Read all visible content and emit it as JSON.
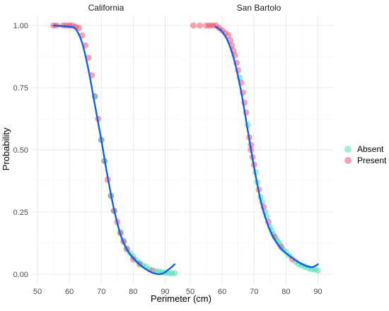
{
  "chart_data": {
    "type": "scatter",
    "facets": [
      {
        "title": "California",
        "points": [
          {
            "x": 55,
            "y": 1.0,
            "group": "Present"
          },
          {
            "x": 56,
            "y": 1.0,
            "group": "Present"
          },
          {
            "x": 58,
            "y": 1.0,
            "group": "Present"
          },
          {
            "x": 59,
            "y": 1.0,
            "group": "Present"
          },
          {
            "x": 60,
            "y": 1.0,
            "group": "Present"
          },
          {
            "x": 61,
            "y": 1.0,
            "group": "Present"
          },
          {
            "x": 62,
            "y": 0.995,
            "group": "Present"
          },
          {
            "x": 63,
            "y": 0.99,
            "group": "Present"
          },
          {
            "x": 64,
            "y": 0.96,
            "group": "Present"
          },
          {
            "x": 65,
            "y": 0.92,
            "group": "Present"
          },
          {
            "x": 66,
            "y": 0.87,
            "group": "Present"
          },
          {
            "x": 67,
            "y": 0.8,
            "group": "Present"
          },
          {
            "x": 68,
            "y": 0.715,
            "group": "Present"
          },
          {
            "x": 68,
            "y": 0.715,
            "group": "Absent"
          },
          {
            "x": 69,
            "y": 0.625,
            "group": "Present"
          },
          {
            "x": 70,
            "y": 0.54,
            "group": "Present"
          },
          {
            "x": 70,
            "y": 0.54,
            "group": "Absent"
          },
          {
            "x": 71,
            "y": 0.455,
            "group": "Present"
          },
          {
            "x": 71,
            "y": 0.455,
            "group": "Absent"
          },
          {
            "x": 72,
            "y": 0.38,
            "group": "Present"
          },
          {
            "x": 73,
            "y": 0.315,
            "group": "Present"
          },
          {
            "x": 73,
            "y": 0.315,
            "group": "Absent"
          },
          {
            "x": 74,
            "y": 0.255,
            "group": "Absent"
          },
          {
            "x": 74,
            "y": 0.255,
            "group": "Present"
          },
          {
            "x": 75,
            "y": 0.21,
            "group": "Present"
          },
          {
            "x": 76,
            "y": 0.17,
            "group": "Absent"
          },
          {
            "x": 76,
            "y": 0.165,
            "group": "Present"
          },
          {
            "x": 77,
            "y": 0.135,
            "group": "Absent"
          },
          {
            "x": 77,
            "y": 0.13,
            "group": "Present"
          },
          {
            "x": 78,
            "y": 0.105,
            "group": "Absent"
          },
          {
            "x": 78,
            "y": 0.1,
            "group": "Present"
          },
          {
            "x": 79,
            "y": 0.085,
            "group": "Absent"
          },
          {
            "x": 80,
            "y": 0.07,
            "group": "Absent"
          },
          {
            "x": 80,
            "y": 0.06,
            "group": "Present"
          },
          {
            "x": 81,
            "y": 0.055,
            "group": "Absent"
          },
          {
            "x": 82,
            "y": 0.045,
            "group": "Absent"
          },
          {
            "x": 82,
            "y": 0.04,
            "group": "Present"
          },
          {
            "x": 83,
            "y": 0.035,
            "group": "Absent"
          },
          {
            "x": 84,
            "y": 0.03,
            "group": "Absent"
          },
          {
            "x": 85,
            "y": 0.02,
            "group": "Absent"
          },
          {
            "x": 86,
            "y": 0.015,
            "group": "Present"
          },
          {
            "x": 87,
            "y": 0.012,
            "group": "Absent"
          },
          {
            "x": 88,
            "y": 0.01,
            "group": "Absent"
          },
          {
            "x": 89,
            "y": 0.008,
            "group": "Absent"
          },
          {
            "x": 90,
            "y": 0.006,
            "group": "Absent"
          },
          {
            "x": 91,
            "y": 0.005,
            "group": "Absent"
          },
          {
            "x": 92,
            "y": 0.004,
            "group": "Absent"
          },
          {
            "x": 93,
            "y": 0.004,
            "group": "Absent"
          }
        ],
        "fit": [
          {
            "x": 55,
            "y": 1.0
          },
          {
            "x": 60,
            "y": 0.995
          },
          {
            "x": 62,
            "y": 0.985
          },
          {
            "x": 64,
            "y": 0.93
          },
          {
            "x": 66,
            "y": 0.82
          },
          {
            "x": 68,
            "y": 0.68
          },
          {
            "x": 70,
            "y": 0.54
          },
          {
            "x": 72,
            "y": 0.39
          },
          {
            "x": 74,
            "y": 0.26
          },
          {
            "x": 76,
            "y": 0.16
          },
          {
            "x": 78,
            "y": 0.1
          },
          {
            "x": 80,
            "y": 0.065
          },
          {
            "x": 82,
            "y": 0.04
          },
          {
            "x": 84,
            "y": 0.02
          },
          {
            "x": 86,
            "y": 0.006
          },
          {
            "x": 87,
            "y": 0.002
          },
          {
            "x": 88,
            "y": 0.0
          },
          {
            "x": 89,
            "y": 0.002
          },
          {
            "x": 90,
            "y": 0.008
          },
          {
            "x": 91,
            "y": 0.018
          },
          {
            "x": 92,
            "y": 0.028
          },
          {
            "x": 93,
            "y": 0.04
          }
        ]
      },
      {
        "title": "San Bartolo",
        "points": [
          {
            "x": 51,
            "y": 1.0,
            "group": "Present"
          },
          {
            "x": 53,
            "y": 1.0,
            "group": "Present"
          },
          {
            "x": 55,
            "y": 1.0,
            "group": "Present"
          },
          {
            "x": 56,
            "y": 1.0,
            "group": "Present"
          },
          {
            "x": 57,
            "y": 1.0,
            "group": "Present"
          },
          {
            "x": 58,
            "y": 1.0,
            "group": "Present"
          },
          {
            "x": 59,
            "y": 0.99,
            "group": "Present"
          },
          {
            "x": 60,
            "y": 0.98,
            "group": "Present"
          },
          {
            "x": 61,
            "y": 0.97,
            "group": "Present"
          },
          {
            "x": 62,
            "y": 0.96,
            "group": "Present"
          },
          {
            "x": 62.5,
            "y": 0.94,
            "group": "Present"
          },
          {
            "x": 63,
            "y": 0.92,
            "group": "Present"
          },
          {
            "x": 63.5,
            "y": 0.9,
            "group": "Present"
          },
          {
            "x": 64,
            "y": 0.88,
            "group": "Present"
          },
          {
            "x": 64.5,
            "y": 0.85,
            "group": "Present"
          },
          {
            "x": 65,
            "y": 0.82,
            "group": "Present"
          },
          {
            "x": 65.5,
            "y": 0.79,
            "group": "Absent"
          },
          {
            "x": 66,
            "y": 0.77,
            "group": "Present"
          },
          {
            "x": 66.5,
            "y": 0.73,
            "group": "Present"
          },
          {
            "x": 67,
            "y": 0.69,
            "group": "Present"
          },
          {
            "x": 67.5,
            "y": 0.65,
            "group": "Present"
          },
          {
            "x": 68,
            "y": 0.6,
            "group": "Absent"
          },
          {
            "x": 68.5,
            "y": 0.55,
            "group": "Present"
          },
          {
            "x": 69,
            "y": 0.52,
            "group": "Present"
          },
          {
            "x": 69,
            "y": 0.5,
            "group": "Present"
          },
          {
            "x": 69.5,
            "y": 0.47,
            "group": "Present"
          },
          {
            "x": 70,
            "y": 0.44,
            "group": "Present"
          },
          {
            "x": 70.5,
            "y": 0.41,
            "group": "Absent"
          },
          {
            "x": 71,
            "y": 0.37,
            "group": "Absent"
          },
          {
            "x": 71.5,
            "y": 0.34,
            "group": "Present"
          },
          {
            "x": 72,
            "y": 0.31,
            "group": "Absent"
          },
          {
            "x": 72.5,
            "y": 0.29,
            "group": "Absent"
          },
          {
            "x": 73,
            "y": 0.27,
            "group": "Present"
          },
          {
            "x": 73.5,
            "y": 0.25,
            "group": "Absent"
          },
          {
            "x": 74,
            "y": 0.23,
            "group": "Absent"
          },
          {
            "x": 74.5,
            "y": 0.21,
            "group": "Present"
          },
          {
            "x": 75,
            "y": 0.19,
            "group": "Absent"
          },
          {
            "x": 75.5,
            "y": 0.175,
            "group": "Absent"
          },
          {
            "x": 76,
            "y": 0.16,
            "group": "Absent"
          },
          {
            "x": 76.5,
            "y": 0.15,
            "group": "Present"
          },
          {
            "x": 77,
            "y": 0.14,
            "group": "Absent"
          },
          {
            "x": 77.5,
            "y": 0.13,
            "group": "Absent"
          },
          {
            "x": 78,
            "y": 0.12,
            "group": "Absent"
          },
          {
            "x": 78.5,
            "y": 0.11,
            "group": "Present"
          },
          {
            "x": 79,
            "y": 0.1,
            "group": "Absent"
          },
          {
            "x": 80,
            "y": 0.09,
            "group": "Absent"
          },
          {
            "x": 81,
            "y": 0.075,
            "group": "Absent"
          },
          {
            "x": 82,
            "y": 0.06,
            "group": "Present"
          },
          {
            "x": 83,
            "y": 0.05,
            "group": "Absent"
          },
          {
            "x": 84,
            "y": 0.04,
            "group": "Absent"
          },
          {
            "x": 85,
            "y": 0.035,
            "group": "Absent"
          },
          {
            "x": 86,
            "y": 0.03,
            "group": "Absent"
          },
          {
            "x": 87,
            "y": 0.025,
            "group": "Absent"
          },
          {
            "x": 88,
            "y": 0.02,
            "group": "Absent"
          },
          {
            "x": 89,
            "y": 0.02,
            "group": "Absent"
          },
          {
            "x": 90,
            "y": 0.015,
            "group": "Absent"
          }
        ],
        "fit": [
          {
            "x": 58,
            "y": 0.995
          },
          {
            "x": 60,
            "y": 0.975
          },
          {
            "x": 62,
            "y": 0.93
          },
          {
            "x": 64,
            "y": 0.85
          },
          {
            "x": 66,
            "y": 0.73
          },
          {
            "x": 68,
            "y": 0.58
          },
          {
            "x": 70,
            "y": 0.43
          },
          {
            "x": 72,
            "y": 0.3
          },
          {
            "x": 74,
            "y": 0.21
          },
          {
            "x": 76,
            "y": 0.15
          },
          {
            "x": 78,
            "y": 0.11
          },
          {
            "x": 80,
            "y": 0.085
          },
          {
            "x": 82,
            "y": 0.065
          },
          {
            "x": 84,
            "y": 0.048
          },
          {
            "x": 86,
            "y": 0.035
          },
          {
            "x": 88,
            "y": 0.028
          },
          {
            "x": 89,
            "y": 0.032
          },
          {
            "x": 90,
            "y": 0.04
          }
        ]
      }
    ],
    "xlabel": "Perimeter (cm)",
    "ylabel": "Probability",
    "xlim": [
      48,
      95
    ],
    "ylim": [
      -0.04,
      1.04
    ],
    "xticks": [
      50,
      60,
      70,
      80,
      90
    ],
    "yticks": [
      0.0,
      0.25,
      0.5,
      0.75,
      1.0
    ],
    "xtick_labels": [
      "50",
      "60",
      "70",
      "80",
      "90"
    ],
    "ytick_labels": [
      "0.00",
      "0.25",
      "0.50",
      "0.75",
      "1.00"
    ],
    "grid": true,
    "legend": {
      "placement": "right",
      "entries": [
        {
          "label": "Absent",
          "color": "#2ED6A8"
        },
        {
          "label": "Present",
          "color": "#F2335C"
        }
      ]
    },
    "fit_color": "#1560E0",
    "point_opacity": 0.45
  }
}
